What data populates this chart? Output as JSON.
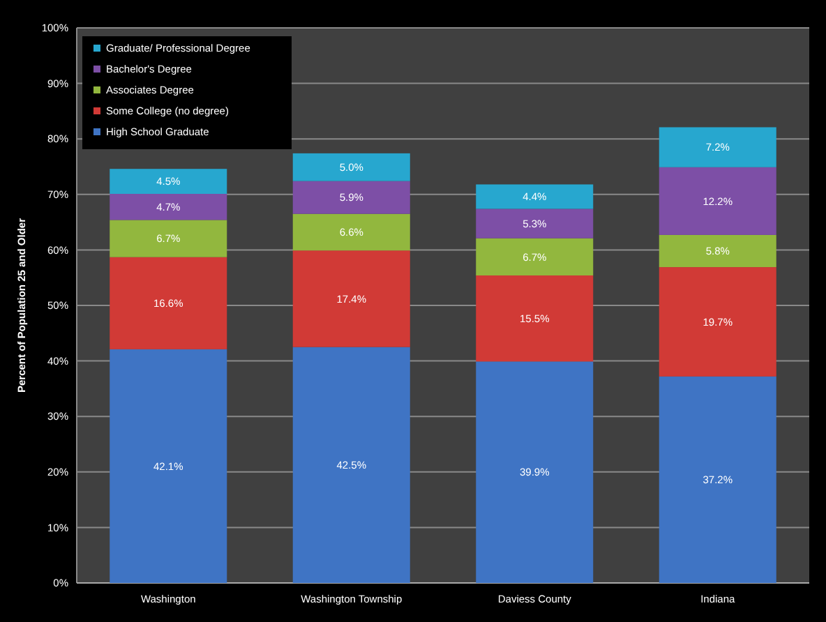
{
  "chart_data": {
    "type": "bar",
    "stacked": true,
    "ylabel": "Percent of Population 25 and Older",
    "categories": [
      "Washington",
      "Washington Township",
      "Daviess County",
      "Indiana"
    ],
    "series": [
      {
        "name": "High School Graduate",
        "color": "#3f74c4",
        "values": [
          42.1,
          42.5,
          39.9,
          37.2
        ],
        "value_labels": [
          "42.1%",
          "42.5%",
          "39.9%",
          "37.2%"
        ]
      },
      {
        "name": "Some College (no degree)",
        "color": "#d13a36",
        "values": [
          16.6,
          17.4,
          15.5,
          19.7
        ],
        "value_labels": [
          "16.6%",
          "17.4%",
          "15.5%",
          "19.7%"
        ]
      },
      {
        "name": "Associates Degree",
        "color": "#92b73e",
        "values": [
          6.7,
          6.6,
          6.7,
          5.8
        ],
        "value_labels": [
          "6.7%",
          "6.6%",
          "6.7%",
          "5.8%"
        ]
      },
      {
        "name": "Bachelor's Degree",
        "color": "#7d4fa6",
        "values": [
          4.7,
          5.9,
          5.3,
          12.2
        ],
        "value_labels": [
          "4.7%",
          "5.9%",
          "5.3%",
          "12.2%"
        ]
      },
      {
        "name": "Graduate/ Professional Degree",
        "color": "#27a7cf",
        "values": [
          4.5,
          5.0,
          4.4,
          7.2
        ],
        "value_labels": [
          "4.5%",
          "5.0%",
          "4.4%",
          "7.2%"
        ]
      }
    ],
    "ylim": [
      0,
      100
    ],
    "yticks": [
      {
        "value": 0,
        "label": "0%"
      },
      {
        "value": 10,
        "label": "10%"
      },
      {
        "value": 20,
        "label": "20%"
      },
      {
        "value": 30,
        "label": "30%"
      },
      {
        "value": 40,
        "label": "40%"
      },
      {
        "value": 50,
        "label": "50%"
      },
      {
        "value": 60,
        "label": "60%"
      },
      {
        "value": 70,
        "label": "70%"
      },
      {
        "value": 80,
        "label": "80%"
      },
      {
        "value": 90,
        "label": "90%"
      },
      {
        "value": 100,
        "label": "100%"
      }
    ],
    "grid": "y",
    "legend": "top left"
  }
}
